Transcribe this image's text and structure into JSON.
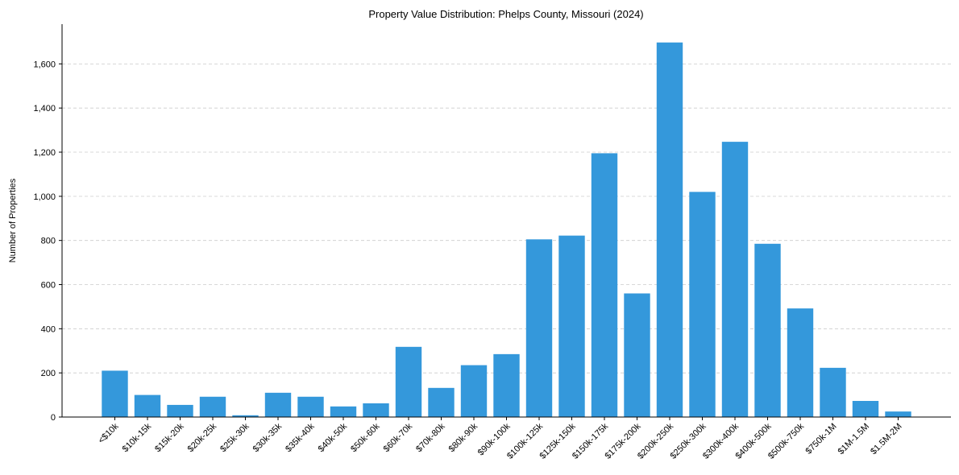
{
  "chart_data": {
    "type": "bar",
    "title": "Property Value Distribution: Phelps County, Missouri (2024)",
    "xlabel": "",
    "ylabel": "Number of Properties",
    "ylim": [
      0,
      1780
    ],
    "yticks": [
      0,
      200,
      400,
      600,
      800,
      1000,
      1200,
      1400,
      1600
    ],
    "ytick_labels": [
      "0",
      "200",
      "400",
      "600",
      "800",
      "1,000",
      "1,200",
      "1,400",
      "1,600"
    ],
    "grid": true,
    "bar_color": "#3498db",
    "categories": [
      "<$10k",
      "$10k-15k",
      "$15k-20k",
      "$20k-25k",
      "$25k-30k",
      "$30k-35k",
      "$35k-40k",
      "$40k-50k",
      "$50k-60k",
      "$60k-70k",
      "$70k-80k",
      "$80k-90k",
      "$90k-100k",
      "$100k-125k",
      "$125k-150k",
      "$150k-175k",
      "$175k-200k",
      "$200k-250k",
      "$250k-300k",
      "$300k-400k",
      "$400k-500k",
      "$500k-750k",
      "$750k-1M",
      "$1M-1.5M",
      "$1.5M-2M"
    ],
    "values": [
      210,
      100,
      55,
      92,
      8,
      110,
      92,
      48,
      62,
      318,
      132,
      235,
      285,
      805,
      822,
      1195,
      560,
      1697,
      1020,
      1247,
      785,
      492,
      223,
      73,
      25
    ]
  }
}
